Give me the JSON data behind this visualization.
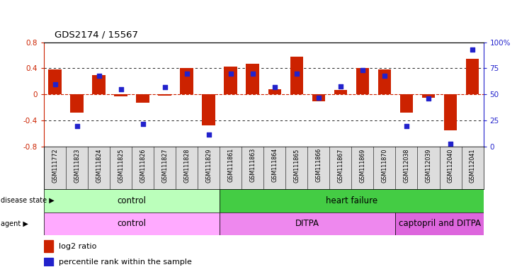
{
  "title": "GDS2174 / 15567",
  "samples": [
    "GSM111772",
    "GSM111823",
    "GSM111824",
    "GSM111825",
    "GSM111826",
    "GSM111827",
    "GSM111828",
    "GSM111829",
    "GSM111861",
    "GSM111863",
    "GSM111864",
    "GSM111865",
    "GSM111866",
    "GSM111867",
    "GSM111869",
    "GSM111870",
    "GSM112038",
    "GSM112039",
    "GSM112040",
    "GSM112041"
  ],
  "log2_ratio": [
    0.38,
    -0.28,
    0.3,
    -0.03,
    -0.12,
    -0.02,
    0.4,
    -0.47,
    0.43,
    0.47,
    0.08,
    0.58,
    -0.1,
    0.07,
    0.4,
    0.38,
    -0.28,
    -0.05,
    -0.55,
    0.55
  ],
  "percentile": [
    60,
    20,
    68,
    55,
    22,
    57,
    70,
    12,
    70,
    70,
    57,
    70,
    47,
    58,
    73,
    68,
    20,
    46,
    3,
    93
  ],
  "ylim_left": [
    -0.8,
    0.8
  ],
  "ylim_right": [
    0,
    100
  ],
  "yticks_left": [
    -0.8,
    -0.4,
    0.0,
    0.4,
    0.8
  ],
  "yticks_right": [
    0,
    25,
    50,
    75,
    100
  ],
  "ytick_labels_right": [
    "0",
    "25",
    "50",
    "75",
    "100%"
  ],
  "bar_color": "#cc2200",
  "dot_color": "#2222cc",
  "disease_state_groups": [
    {
      "label": "control",
      "start": 0,
      "end": 7,
      "color": "#bbffbb"
    },
    {
      "label": "heart failure",
      "start": 8,
      "end": 19,
      "color": "#44cc44"
    }
  ],
  "agent_groups": [
    {
      "label": "control",
      "start": 0,
      "end": 7,
      "color": "#ffaaff"
    },
    {
      "label": "DITPA",
      "start": 8,
      "end": 15,
      "color": "#ee88ee"
    },
    {
      "label": "captopril and DITPA",
      "start": 16,
      "end": 19,
      "color": "#dd66dd"
    }
  ],
  "legend_bar_label": "log2 ratio",
  "legend_dot_label": "percentile rank within the sample",
  "bar_width": 0.6,
  "xtick_bg_color": "#dddddd"
}
